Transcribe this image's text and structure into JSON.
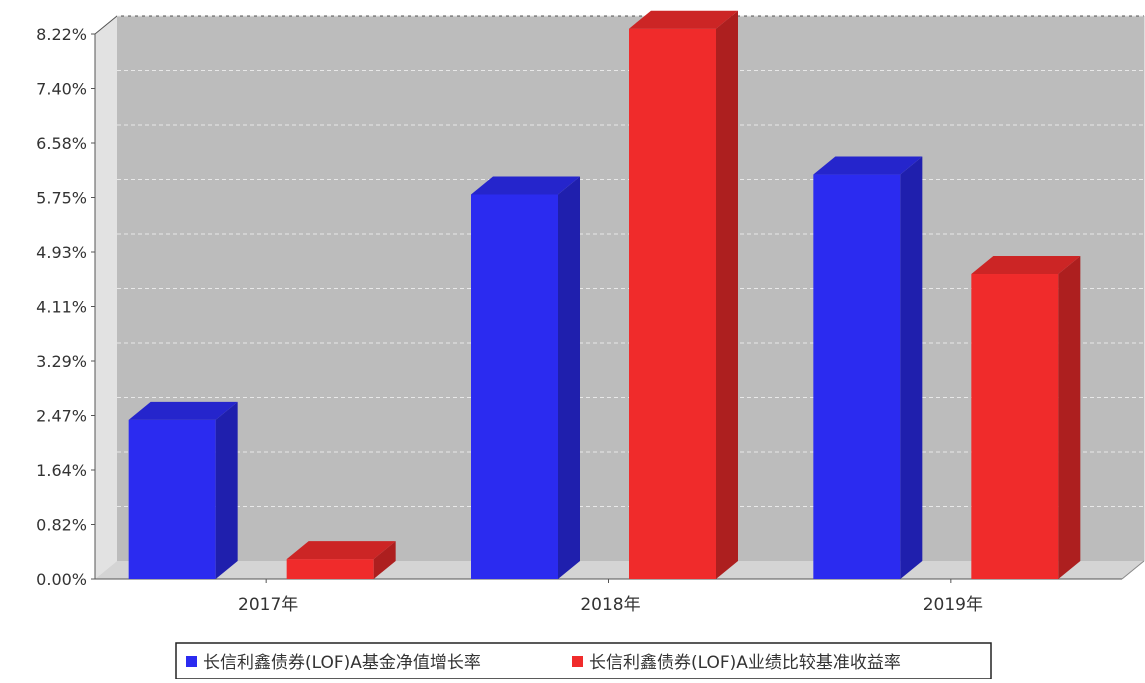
{
  "chart_data": {
    "type": "bar",
    "categories": [
      "2017年",
      "2018年",
      "2019年"
    ],
    "series": [
      {
        "name": "长信利鑫债券(LOF)A基金净值增长率",
        "values": [
          2.4,
          5.8,
          6.1
        ],
        "color": "#2b2bf0"
      },
      {
        "name": "长信利鑫债券(LOF)A业绩比较基准收益率",
        "values": [
          0.3,
          8.3,
          4.6
        ],
        "color": "#f02b2b"
      }
    ],
    "y_ticks": [
      "0.00%",
      "0.82%",
      "1.64%",
      "2.47%",
      "3.29%",
      "4.11%",
      "4.93%",
      "5.75%",
      "6.58%",
      "7.40%",
      "8.22%"
    ],
    "ylim": [
      0,
      8.22
    ],
    "grid": true,
    "legend_position": "bottom"
  }
}
